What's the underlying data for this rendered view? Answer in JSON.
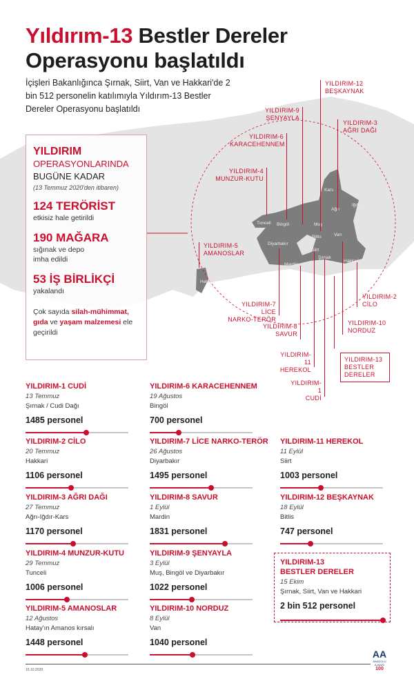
{
  "title": {
    "part1": "Yıldırım-13",
    "part2": " Bestler Dereler",
    "line2": "Operasyonu başlatıldı"
  },
  "intro": "İçişleri Bakanlığınca Şırnak, Siirt, Van ve Hakkari'de 2 bin 512 personelin katılımıyla Yıldırım-13 Bestler Dereler Operasyonu başlatıldı",
  "colors": {
    "accent": "#c8102e",
    "map_highlight": "#7a7a7a",
    "map_base": "#e2e2e2"
  },
  "summary": {
    "h1": "YILDIRIM",
    "h2": "OPERASYONLARINDA",
    "h3": "BUGÜNE KADAR",
    "note": "(13 Temmuz 2020'den itibaren)",
    "stats": [
      {
        "value": "124 TERÖRİST",
        "desc": "etkisiz hale getirildi"
      },
      {
        "value": "190 MAĞARA",
        "desc": "sığınak ve depo imha edildi"
      },
      {
        "value": "53 İŞ BİRLİKÇİ",
        "desc": "yakalandı"
      }
    ],
    "final": {
      "t1": "Çok sayıda ",
      "b1": "silah-mühimmat,",
      "b2": "gıda",
      "t2": " ve ",
      "b3": "yaşam malzemesi",
      "t3": " ele geçirildi"
    }
  },
  "map": {
    "provinces": [
      "Tunceli",
      "Bingöl",
      "Muş",
      "Kars",
      "Iğdır",
      "Ağrı",
      "Bitlis",
      "Van",
      "Diyarbakır",
      "Siirt",
      "Şırnak",
      "Hakkari",
      "Mardin",
      "Hatay"
    ],
    "labels": {
      "y12": [
        "YILDIRIM-12",
        "BEŞKAYNAK"
      ],
      "y9": [
        "YILDIRIM-9",
        "ŞENYAYLA"
      ],
      "y3": [
        "YILDIRIM-3",
        "AĞRI DAĞI"
      ],
      "y6": [
        "YILDIRIM-6",
        "KARACEHENNEM"
      ],
      "y4": [
        "YILDIRIM-4",
        "MUNZUR-KUTU"
      ],
      "y5": [
        "YILDIRIM-5",
        "AMANOSLAR"
      ],
      "y7": [
        "YILDIRIM-7 LİCE",
        "NARKO-TERÖR"
      ],
      "y8": [
        "YILDIRIM-8",
        "SAVUR"
      ],
      "y11": [
        "YILDIRIM-11",
        "HEREKOL"
      ],
      "y1": [
        "YILDIRIM-1",
        "CUDİ"
      ],
      "y2": [
        "YILDIRIM-2",
        "CİLO"
      ],
      "y10": [
        "YILDIRIM-10",
        "NORDUZ"
      ],
      "y13": [
        "YILDIRIM-13",
        "BESTLER",
        "DERELER"
      ]
    }
  },
  "operations": [
    {
      "title": "YILDIRIM-1 CUDİ",
      "date": "13 Temmuz",
      "place": "Şırnak / Cudi Dağı",
      "personnel": "1485 personel",
      "count": 1485
    },
    {
      "title": "YILDIRIM-2 CİLO",
      "date": "20 Temmuz",
      "place": "Hakkari",
      "personnel": "1106 personel",
      "count": 1106
    },
    {
      "title": "YILDIRIM-3 AĞRI DAĞI",
      "date": "27 Temmuz",
      "place": "Ağrı-Iğdır-Kars",
      "personnel": "1170 personel",
      "count": 1170
    },
    {
      "title": "YILDIRIM-4 MUNZUR-KUTU",
      "date": "29 Temmuz",
      "place": "Tunceli",
      "personnel": "1006 personel",
      "count": 1006
    },
    {
      "title": "YILDIRIM-5 AMANOSLAR",
      "date": "12 Ağustos",
      "place": "Hatay'ın Amanos kırsalı",
      "personnel": "1448 personel",
      "count": 1448
    },
    {
      "title": "YILDIRIM-6 KARACEHENNEM",
      "date": "19 Ağustos",
      "place": "Bingöl",
      "personnel": "700 personel",
      "count": 700
    },
    {
      "title": "YILDIRIM-7 LİCE NARKO-TERÖR",
      "date": "26 Ağustos",
      "place": "Diyarbakır",
      "personnel": "1495 personel",
      "count": 1495
    },
    {
      "title": "YILDIRIM-8 SAVUR",
      "date": "1 Eylül",
      "place": "Mardin",
      "personnel": "1831 personel",
      "count": 1831
    },
    {
      "title": "YILDIRIM-9 ŞENYAYLA",
      "date": "3 Eylül",
      "place": "Muş, Bingöl ve Diyarbakır",
      "personnel": "1022 personel",
      "count": 1022
    },
    {
      "title": "YILDIRIM-10 NORDUZ",
      "date": "8 Eylül",
      "place": "Van",
      "personnel": "1040 personel",
      "count": 1040
    },
    {
      "title": "YILDIRIM-11 HEREKOL",
      "date": "11 Eylül",
      "place": "Siirt",
      "personnel": "1003 personel",
      "count": 1003
    },
    {
      "title": "YILDIRIM-12 BEŞKAYNAK",
      "date": "18 Eylül",
      "place": "Bitlis",
      "personnel": "747 personel",
      "count": 747
    },
    {
      "title": "YILDIRIM-13",
      "title2": "BESTLER DERELER",
      "date": "15 Ekim",
      "place": "Şırnak, Siirt, Van ve Hakkari",
      "personnel": "2 bin 512 personel",
      "count": 2512
    }
  ],
  "footer": {
    "date": "15.10.2020",
    "logo": "AA ANADOLU AJANSI 100"
  }
}
